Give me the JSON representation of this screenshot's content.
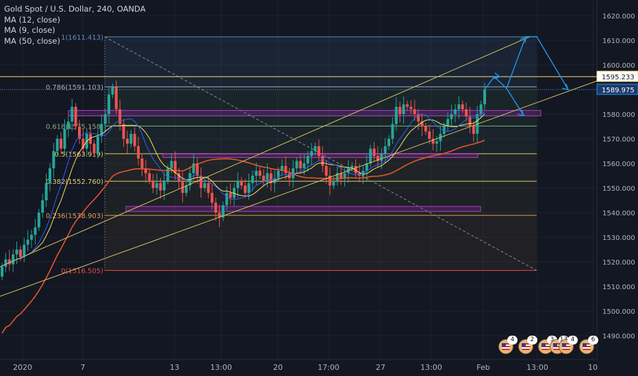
{
  "legend": {
    "title": "Gold Spot / U.S. Dollar, 240, OANDA",
    "ma1": "MA (12, close)",
    "ma2": "MA (9, close)",
    "ma3": "MA (50, close)"
  },
  "colors": {
    "background": "#131722",
    "grid": "#1e2230",
    "axis_text": "#b2b5be",
    "up": "#26a69a",
    "down": "#ef5350",
    "ma_fast": "#2962ff",
    "ma_slow": "#fbe26a",
    "ma_long": "#e8562a",
    "channel": "#d8c460",
    "fib_top": "#5b8fbf",
    "purple_zone": "#9c27b0",
    "projection": "#2196f3"
  },
  "price_axis": {
    "ticks": [
      "1620.000",
      "1610.000",
      "1600.000",
      "1590.000",
      "1580.000",
      "1570.000",
      "1560.000",
      "1550.000",
      "1540.000",
      "1530.000",
      "1520.000",
      "1510.000",
      "1500.000",
      "1490.000"
    ],
    "tick_values": [
      1620,
      1610,
      1600,
      1590,
      1580,
      1570,
      1560,
      1550,
      1540,
      1530,
      1520,
      1510,
      1500,
      1490
    ],
    "label_yellow": "1595.233",
    "label_blue": "1589.975"
  },
  "time_axis": {
    "labels": [
      "2020",
      "7",
      "13",
      "13:00",
      "20",
      "17:00",
      "27",
      "13:00",
      "Feb",
      "13:00",
      "10"
    ]
  },
  "fib": {
    "levels": [
      {
        "label": "1(1611.413)",
        "price": 1611.413
      },
      {
        "label": "0.786(1591.103)",
        "price": 1591.103
      },
      {
        "label": "0.618(1575.158)",
        "price": 1575.158
      },
      {
        "label": "0.5(1563.919)",
        "price": 1563.919
      },
      {
        "label": "0.382(1552.760)",
        "price": 1552.76
      },
      {
        "label": "0.236(1538.903)",
        "price": 1538.903
      },
      {
        "label": "0(1516.505)",
        "price": 1516.505
      }
    ]
  },
  "events": [
    {
      "icon": "us-flag-icon",
      "count": "4"
    },
    {
      "icon": "us-flag-icon",
      "count": "2"
    },
    {
      "icon": "us-flag-icon",
      "count": "3"
    },
    {
      "icon": "us-flag-icon",
      "count": "13"
    },
    {
      "icon": "us-flag-icon",
      "count": "4"
    },
    {
      "icon": "us-flag-icon",
      "count": "6"
    }
  ],
  "chart_data": {
    "type": "candlestick",
    "title": "Gold Spot / U.S. Dollar, 240, OANDA",
    "ylim": [
      1485,
      1625
    ],
    "x": [
      "2020",
      "7",
      "13",
      "13:00",
      "20",
      "17:00",
      "27",
      "13:00",
      "Feb",
      "13:00",
      "10"
    ],
    "series": [
      {
        "name": "MA (12, close)"
      },
      {
        "name": "MA (9, close)"
      },
      {
        "name": "MA (50, close)"
      }
    ],
    "candles_close": [
      1518,
      1521,
      1519,
      1523,
      1525,
      1522,
      1527,
      1529,
      1531,
      1534,
      1540,
      1545,
      1552,
      1558,
      1565,
      1570,
      1566,
      1574,
      1577,
      1583,
      1575,
      1570,
      1566,
      1572,
      1568,
      1564,
      1571,
      1576,
      1580,
      1588,
      1591,
      1582,
      1576,
      1570,
      1568,
      1572,
      1567,
      1562,
      1558,
      1556,
      1553,
      1550,
      1552,
      1549,
      1553,
      1558,
      1561,
      1556,
      1553,
      1548,
      1551,
      1556,
      1560,
      1555,
      1550,
      1552,
      1548,
      1544,
      1540,
      1538,
      1543,
      1548,
      1546,
      1550,
      1553,
      1551,
      1548,
      1552,
      1555,
      1557,
      1555,
      1553,
      1556,
      1552,
      1554,
      1557,
      1559,
      1556,
      1554,
      1558,
      1561,
      1558,
      1560,
      1563,
      1565,
      1567,
      1563,
      1559,
      1555,
      1551,
      1553,
      1556,
      1554,
      1556,
      1558,
      1559,
      1556,
      1555,
      1557,
      1560,
      1566,
      1563,
      1561,
      1564,
      1567,
      1570,
      1576,
      1583,
      1580,
      1584,
      1583,
      1582,
      1580,
      1577,
      1575,
      1573,
      1570,
      1568,
      1569,
      1572,
      1575,
      1578,
      1580,
      1582,
      1584,
      1582,
      1579,
      1575,
      1572,
      1580,
      1584,
      1590
    ],
    "fib_levels": [
      1611.413,
      1591.103,
      1575.158,
      1563.919,
      1552.76,
      1538.903,
      1516.505
    ]
  }
}
